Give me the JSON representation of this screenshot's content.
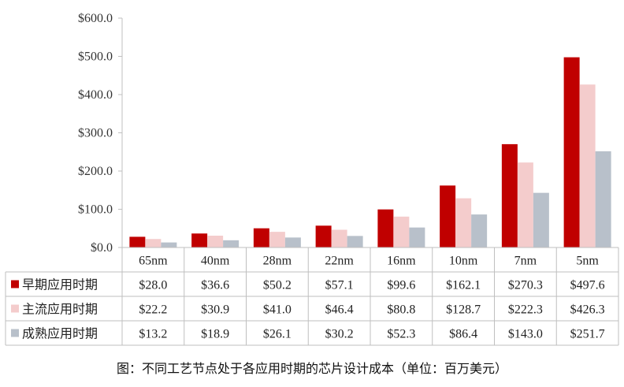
{
  "caption": "图：不同工艺节点处于各应用时期的芯片设计成本（单位：百万美元）",
  "chart_data": {
    "type": "bar",
    "categories": [
      "65nm",
      "40nm",
      "28nm",
      "22nm",
      "16nm",
      "10nm",
      "7nm",
      "5nm"
    ],
    "series": [
      {
        "name": "早期应用时期",
        "color": "#c00000",
        "values": [
          28.0,
          36.6,
          50.2,
          57.1,
          99.6,
          162.1,
          270.3,
          497.6
        ],
        "labels": [
          "$28.0",
          "$36.6",
          "$50.2",
          "$57.1",
          "$99.6",
          "$162.1",
          "$270.3",
          "$497.6"
        ]
      },
      {
        "name": "主流应用时期",
        "color": "#f4cccc",
        "values": [
          22.2,
          30.9,
          41.0,
          46.4,
          80.8,
          128.7,
          222.3,
          426.3
        ],
        "labels": [
          "$22.2",
          "$30.9",
          "$41.0",
          "$46.4",
          "$80.8",
          "$128.7",
          "$222.3",
          "$426.3"
        ]
      },
      {
        "name": "成熟应用时期",
        "color": "#b8c0ca",
        "values": [
          13.2,
          18.9,
          26.1,
          30.2,
          52.3,
          86.4,
          143.0,
          251.7
        ],
        "labels": [
          "$13.2",
          "$18.9",
          "$26.1",
          "$30.2",
          "$52.3",
          "$86.4",
          "$143.0",
          "$251.7"
        ]
      }
    ],
    "ylim": [
      0,
      600
    ],
    "yticks": [
      0,
      100,
      200,
      300,
      400,
      500,
      600
    ],
    "ytick_labels": [
      "$0.0",
      "$100.0",
      "$200.0",
      "$300.0",
      "$400.0",
      "$500.0",
      "$600.0"
    ],
    "grid": false,
    "legend": "data-table"
  }
}
